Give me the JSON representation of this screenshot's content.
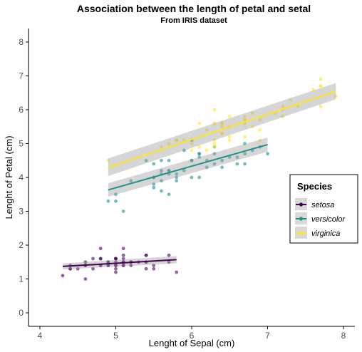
{
  "chart_data": {
    "type": "scatter",
    "title": "Association between the length of petal and setal",
    "subtitle": "From IRIS dataset",
    "xlabel": "Lenght of Sepal (cm)",
    "ylabel": "Lenght of Petal (cm)",
    "xlim": [
      3.85,
      8.15
    ],
    "ylim": [
      -0.4,
      8.4
    ],
    "xticks": [
      4,
      5,
      6,
      7,
      8
    ],
    "yticks": [
      0,
      1,
      2,
      3,
      4,
      5,
      6,
      7,
      8
    ],
    "grid": false,
    "legend": {
      "title": "Species",
      "position": "right"
    },
    "series": [
      {
        "name": "setosa",
        "color": "#440154",
        "trend": {
          "x": [
            4.3,
            5.8
          ],
          "y": [
            1.37,
            1.57
          ],
          "band_halfwidth": [
            0.09,
            0.11
          ]
        },
        "points": [
          [
            5.1,
            1.4
          ],
          [
            4.9,
            1.4
          ],
          [
            4.7,
            1.3
          ],
          [
            4.6,
            1.5
          ],
          [
            5.0,
            1.4
          ],
          [
            5.4,
            1.7
          ],
          [
            4.6,
            1.4
          ],
          [
            5.0,
            1.5
          ],
          [
            4.4,
            1.4
          ],
          [
            4.9,
            1.5
          ],
          [
            5.4,
            1.5
          ],
          [
            4.8,
            1.6
          ],
          [
            4.8,
            1.4
          ],
          [
            4.3,
            1.1
          ],
          [
            5.8,
            1.2
          ],
          [
            5.7,
            1.5
          ],
          [
            5.4,
            1.3
          ],
          [
            5.1,
            1.4
          ],
          [
            5.7,
            1.7
          ],
          [
            5.1,
            1.5
          ],
          [
            5.4,
            1.7
          ],
          [
            5.1,
            1.5
          ],
          [
            4.6,
            1.0
          ],
          [
            5.1,
            1.7
          ],
          [
            4.8,
            1.9
          ],
          [
            5.0,
            1.6
          ],
          [
            5.0,
            1.6
          ],
          [
            5.2,
            1.5
          ],
          [
            5.2,
            1.4
          ],
          [
            4.7,
            1.6
          ],
          [
            4.8,
            1.6
          ],
          [
            5.4,
            1.5
          ],
          [
            5.2,
            1.5
          ],
          [
            5.5,
            1.4
          ],
          [
            4.9,
            1.5
          ],
          [
            5.0,
            1.2
          ],
          [
            5.5,
            1.3
          ],
          [
            4.9,
            1.4
          ],
          [
            4.4,
            1.3
          ],
          [
            5.1,
            1.5
          ],
          [
            5.0,
            1.3
          ],
          [
            4.5,
            1.3
          ],
          [
            4.4,
            1.3
          ],
          [
            5.0,
            1.6
          ],
          [
            5.1,
            1.9
          ],
          [
            4.8,
            1.4
          ],
          [
            5.1,
            1.6
          ],
          [
            4.6,
            1.4
          ],
          [
            5.3,
            1.5
          ],
          [
            5.0,
            1.4
          ]
        ]
      },
      {
        "name": "versicolor",
        "color": "#21908C",
        "trend": {
          "x": [
            4.9,
            7.0
          ],
          "y": [
            3.63,
            4.97
          ],
          "band_halfwidth": [
            0.2,
            0.21
          ]
        },
        "points": [
          [
            7.0,
            4.7
          ],
          [
            6.4,
            4.5
          ],
          [
            6.9,
            4.9
          ],
          [
            5.5,
            4.0
          ],
          [
            6.5,
            4.6
          ],
          [
            5.7,
            4.5
          ],
          [
            6.3,
            4.7
          ],
          [
            4.9,
            3.3
          ],
          [
            6.6,
            4.6
          ],
          [
            5.2,
            3.9
          ],
          [
            5.0,
            3.5
          ],
          [
            5.9,
            4.2
          ],
          [
            6.0,
            4.0
          ],
          [
            6.1,
            4.7
          ],
          [
            5.6,
            3.6
          ],
          [
            6.7,
            4.4
          ],
          [
            5.6,
            4.5
          ],
          [
            5.8,
            4.1
          ],
          [
            6.2,
            4.5
          ],
          [
            5.6,
            3.9
          ],
          [
            5.9,
            4.8
          ],
          [
            6.1,
            4.0
          ],
          [
            6.3,
            4.9
          ],
          [
            6.1,
            4.7
          ],
          [
            6.4,
            4.3
          ],
          [
            6.6,
            4.4
          ],
          [
            6.8,
            4.8
          ],
          [
            6.7,
            5.0
          ],
          [
            6.0,
            4.5
          ],
          [
            5.7,
            3.5
          ],
          [
            5.5,
            3.8
          ],
          [
            5.5,
            3.7
          ],
          [
            5.8,
            3.9
          ],
          [
            6.0,
            5.1
          ],
          [
            5.4,
            4.5
          ],
          [
            6.0,
            4.5
          ],
          [
            6.7,
            4.7
          ],
          [
            6.3,
            4.4
          ],
          [
            5.6,
            4.1
          ],
          [
            5.5,
            4.0
          ],
          [
            5.5,
            4.4
          ],
          [
            6.1,
            4.6
          ],
          [
            5.8,
            4.0
          ],
          [
            5.0,
            3.3
          ],
          [
            5.6,
            4.2
          ],
          [
            5.7,
            4.2
          ],
          [
            5.7,
            4.2
          ],
          [
            6.2,
            4.3
          ],
          [
            5.1,
            3.0
          ],
          [
            5.7,
            4.1
          ]
        ]
      },
      {
        "name": "virginica",
        "color": "#FDE725",
        "trend": {
          "x": [
            4.9,
            7.9
          ],
          "y": [
            4.3,
            6.55
          ],
          "band_halfwidth": [
            0.26,
            0.24
          ]
        },
        "points": [
          [
            6.3,
            6.0
          ],
          [
            5.8,
            5.1
          ],
          [
            7.1,
            5.9
          ],
          [
            6.3,
            5.6
          ],
          [
            6.5,
            5.8
          ],
          [
            7.6,
            6.6
          ],
          [
            4.9,
            4.5
          ],
          [
            7.3,
            6.3
          ],
          [
            6.7,
            5.8
          ],
          [
            7.2,
            6.1
          ],
          [
            6.5,
            5.1
          ],
          [
            6.4,
            5.3
          ],
          [
            6.8,
            5.5
          ],
          [
            5.7,
            5.0
          ],
          [
            5.8,
            5.1
          ],
          [
            6.4,
            5.3
          ],
          [
            6.5,
            5.5
          ],
          [
            7.7,
            6.7
          ],
          [
            7.7,
            6.9
          ],
          [
            6.0,
            5.0
          ],
          [
            6.9,
            5.7
          ],
          [
            5.6,
            4.9
          ],
          [
            7.7,
            6.7
          ],
          [
            6.3,
            4.9
          ],
          [
            6.7,
            5.7
          ],
          [
            7.2,
            6.0
          ],
          [
            6.2,
            4.8
          ],
          [
            6.1,
            4.9
          ],
          [
            6.4,
            5.6
          ],
          [
            7.2,
            5.8
          ],
          [
            7.4,
            6.1
          ],
          [
            7.9,
            6.4
          ],
          [
            6.4,
            5.6
          ],
          [
            6.3,
            5.1
          ],
          [
            6.1,
            5.6
          ],
          [
            7.7,
            6.1
          ],
          [
            6.3,
            5.6
          ],
          [
            6.4,
            5.5
          ],
          [
            6.0,
            4.8
          ],
          [
            6.9,
            5.4
          ],
          [
            6.7,
            5.6
          ],
          [
            6.9,
            5.1
          ],
          [
            5.8,
            5.1
          ],
          [
            6.8,
            5.9
          ],
          [
            6.7,
            5.7
          ],
          [
            6.7,
            5.2
          ],
          [
            6.3,
            5.0
          ],
          [
            6.5,
            5.2
          ],
          [
            6.2,
            5.4
          ],
          [
            5.9,
            5.1
          ]
        ]
      }
    ]
  }
}
